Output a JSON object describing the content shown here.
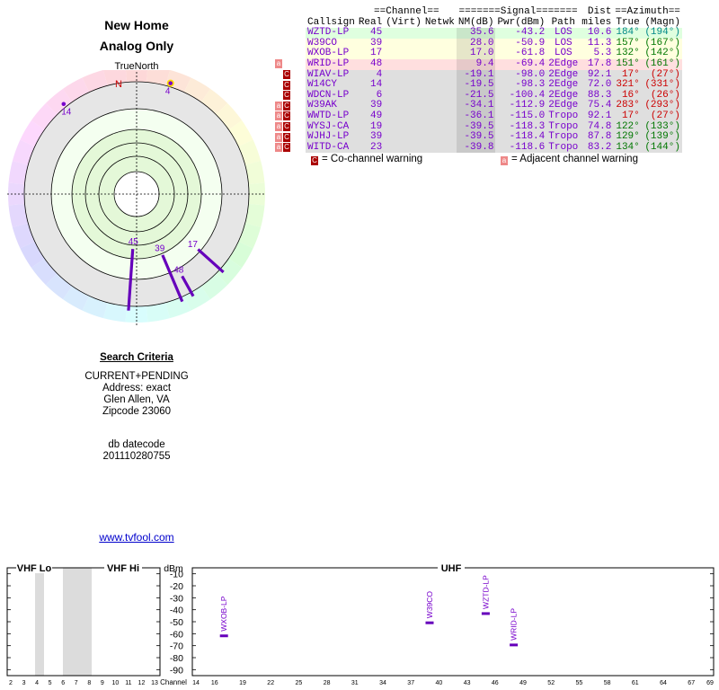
{
  "header": {
    "title": "New Home",
    "subtitle": "Analog Only"
  },
  "radar": {
    "north_label": "TrueNorth",
    "n_marker": "N",
    "dots": [
      {
        "label": "4",
        "azimuth": 17,
        "ring": 0.97,
        "color": "#7700cc",
        "highlight": true
      },
      {
        "label": "14",
        "azimuth": 321,
        "ring": 0.97,
        "color": "#7700cc",
        "highlight": false
      }
    ],
    "bars": [
      {
        "label": "45",
        "azimuth": 184,
        "nm": 35.6
      },
      {
        "label": "39",
        "azimuth": 157,
        "nm": 28.0
      },
      {
        "label": "17",
        "azimuth": 132,
        "nm": 17.0
      },
      {
        "label": "48",
        "azimuth": 151,
        "nm": 9.4
      }
    ]
  },
  "table": {
    "group_headers": {
      "channel": "==Channel==",
      "signal": "=======Signal=======",
      "dist": "Dist",
      "azimuth": "==Azimuth=="
    },
    "columns": [
      "Callsign",
      "Real",
      "(Virt)",
      "Netwk",
      "NM(dB)",
      "Pwr(dBm)",
      "Path",
      "miles",
      "True",
      "(Magn)"
    ],
    "rows": [
      {
        "callsign": "WZTD-LP",
        "real": "45",
        "virt": "",
        "netwk": "",
        "nm": "35.6",
        "pwr": "-43.2",
        "path": "LOS",
        "dist": "10.6",
        "true": "184°",
        "magn": "(194°)",
        "bg": "#dfffdf",
        "az_color": "#008888",
        "warn": ""
      },
      {
        "callsign": "W39CO",
        "real": "39",
        "virt": "",
        "netwk": "",
        "nm": "28.0",
        "pwr": "-50.9",
        "path": "LOS",
        "dist": "11.3",
        "true": "157°",
        "magn": "(167°)",
        "bg": "#ffffdf",
        "az_color": "#007700",
        "warn": ""
      },
      {
        "callsign": "WXOB-LP",
        "real": "17",
        "virt": "",
        "netwk": "",
        "nm": "17.0",
        "pwr": "-61.8",
        "path": "LOS",
        "dist": "5.3",
        "true": "132°",
        "magn": "(142°)",
        "bg": "#ffffdf",
        "az_color": "#007700",
        "warn": ""
      },
      {
        "callsign": "WRID-LP",
        "real": "48",
        "virt": "",
        "netwk": "",
        "nm": "9.4",
        "pwr": "-69.4",
        "path": "2Edge",
        "dist": "17.8",
        "true": "151°",
        "magn": "(161°)",
        "bg": "#ffdfdf",
        "az_color": "#007700",
        "warn": "a"
      },
      {
        "callsign": "WIAV-LP",
        "real": "4",
        "virt": "",
        "netwk": "",
        "nm": "-19.1",
        "pwr": "-98.0",
        "path": "2Edge",
        "dist": "92.1",
        "true": "17°",
        "magn": "(27°)",
        "bg": "#dfdfdf",
        "az_color": "#cc0000",
        "warn": "c"
      },
      {
        "callsign": "W14CY",
        "real": "14",
        "virt": "",
        "netwk": "",
        "nm": "-19.5",
        "pwr": "-98.3",
        "path": "2Edge",
        "dist": "72.0",
        "true": "321°",
        "magn": "(331°)",
        "bg": "#dfdfdf",
        "az_color": "#cc0000",
        "warn": "c"
      },
      {
        "callsign": "WDCN-LP",
        "real": "6",
        "virt": "",
        "netwk": "",
        "nm": "-21.5",
        "pwr": "-100.4",
        "path": "2Edge",
        "dist": "88.3",
        "true": "16°",
        "magn": "(26°)",
        "bg": "#dfdfdf",
        "az_color": "#cc0000",
        "warn": "c"
      },
      {
        "callsign": "W39AK",
        "real": "39",
        "virt": "",
        "netwk": "",
        "nm": "-34.1",
        "pwr": "-112.9",
        "path": "2Edge",
        "dist": "75.4",
        "true": "283°",
        "magn": "(293°)",
        "bg": "#dfdfdf",
        "az_color": "#cc0000",
        "warn": "ac"
      },
      {
        "callsign": "WWTD-LP",
        "real": "49",
        "virt": "",
        "netwk": "",
        "nm": "-36.1",
        "pwr": "-115.0",
        "path": "Tropo",
        "dist": "92.1",
        "true": "17°",
        "magn": "(27°)",
        "bg": "#dfdfdf",
        "az_color": "#cc0000",
        "warn": "ac"
      },
      {
        "callsign": "WYSJ-CA",
        "real": "19",
        "virt": "",
        "netwk": "",
        "nm": "-39.5",
        "pwr": "-118.3",
        "path": "Tropo",
        "dist": "74.8",
        "true": "122°",
        "magn": "(133°)",
        "bg": "#dfdfdf",
        "az_color": "#007700",
        "warn": "ac"
      },
      {
        "callsign": "WJHJ-LP",
        "real": "39",
        "virt": "",
        "netwk": "",
        "nm": "-39.5",
        "pwr": "-118.4",
        "path": "Tropo",
        "dist": "87.8",
        "true": "129°",
        "magn": "(139°)",
        "bg": "#dfdfdf",
        "az_color": "#007700",
        "warn": "ac"
      },
      {
        "callsign": "WITD-CA",
        "real": "23",
        "virt": "",
        "netwk": "",
        "nm": "-39.8",
        "pwr": "-118.6",
        "path": "Tropo",
        "dist": "83.2",
        "true": "134°",
        "magn": "(144°)",
        "bg": "#dfdfdf",
        "az_color": "#007700",
        "warn": "ac"
      }
    ]
  },
  "legend": {
    "co_box": "C",
    "co_label": "= Co-channel warning",
    "adj_box": "a",
    "adj_label": "= Adjacent channel warning"
  },
  "criteria": {
    "heading": "Search Criteria",
    "lines": [
      "CURRENT+PENDING",
      "Address: exact",
      "Glen Allen, VA",
      "Zipcode 23060"
    ],
    "db_label": "db datecode",
    "db_value": "201110280755"
  },
  "link": "www.tvfool.com",
  "chart_data": {
    "type": "bar",
    "title": "",
    "sections": {
      "vhf_lo": "VHF Lo",
      "vhf_hi": "VHF Hi",
      "uhf": "UHF"
    },
    "ylabel": "dBm",
    "xlabel": "Channel",
    "yticks": [
      -10,
      -20,
      -30,
      -40,
      -50,
      -60,
      -70,
      -80,
      -90
    ],
    "ylim": [
      -95,
      -5
    ],
    "vhf_ticks": [
      "2",
      "3",
      "4",
      "5",
      "6",
      "7",
      "8",
      "9",
      "10",
      "11",
      "12",
      "13"
    ],
    "uhf_ticks": [
      "14",
      "16",
      "19",
      "22",
      "25",
      "28",
      "31",
      "34",
      "37",
      "40",
      "43",
      "46",
      "49",
      "52",
      "55",
      "58",
      "61",
      "64",
      "67",
      "69"
    ],
    "stations": [
      {
        "label": "WXOB-LP",
        "channel": 17,
        "dbm": -61.8
      },
      {
        "label": "W39CO",
        "channel": 39,
        "dbm": -50.9
      },
      {
        "label": "WZTD-LP",
        "channel": 45,
        "dbm": -43.2
      },
      {
        "label": "WRID-LP",
        "channel": 48,
        "dbm": -69.4
      }
    ]
  }
}
